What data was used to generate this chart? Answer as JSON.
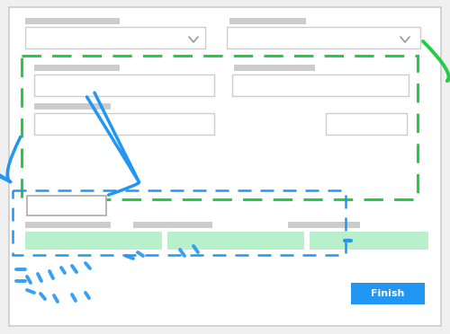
{
  "bg_color": "#f0f0f0",
  "card_bg": "#ffffff",
  "card_border": "#cccccc",
  "gray_bar": "#cccccc",
  "input_bg": "#ffffff",
  "input_border": "#cccccc",
  "green_dashed": "#22cc44",
  "blue": "#2196F3",
  "green": "#22cc44",
  "green_bar": "#b8f0cc",
  "blue_btn": "#2196F3",
  "text_white": "#ffffff",
  "triangle_color": "#999999",
  "selected_border": "#aaaaaa"
}
